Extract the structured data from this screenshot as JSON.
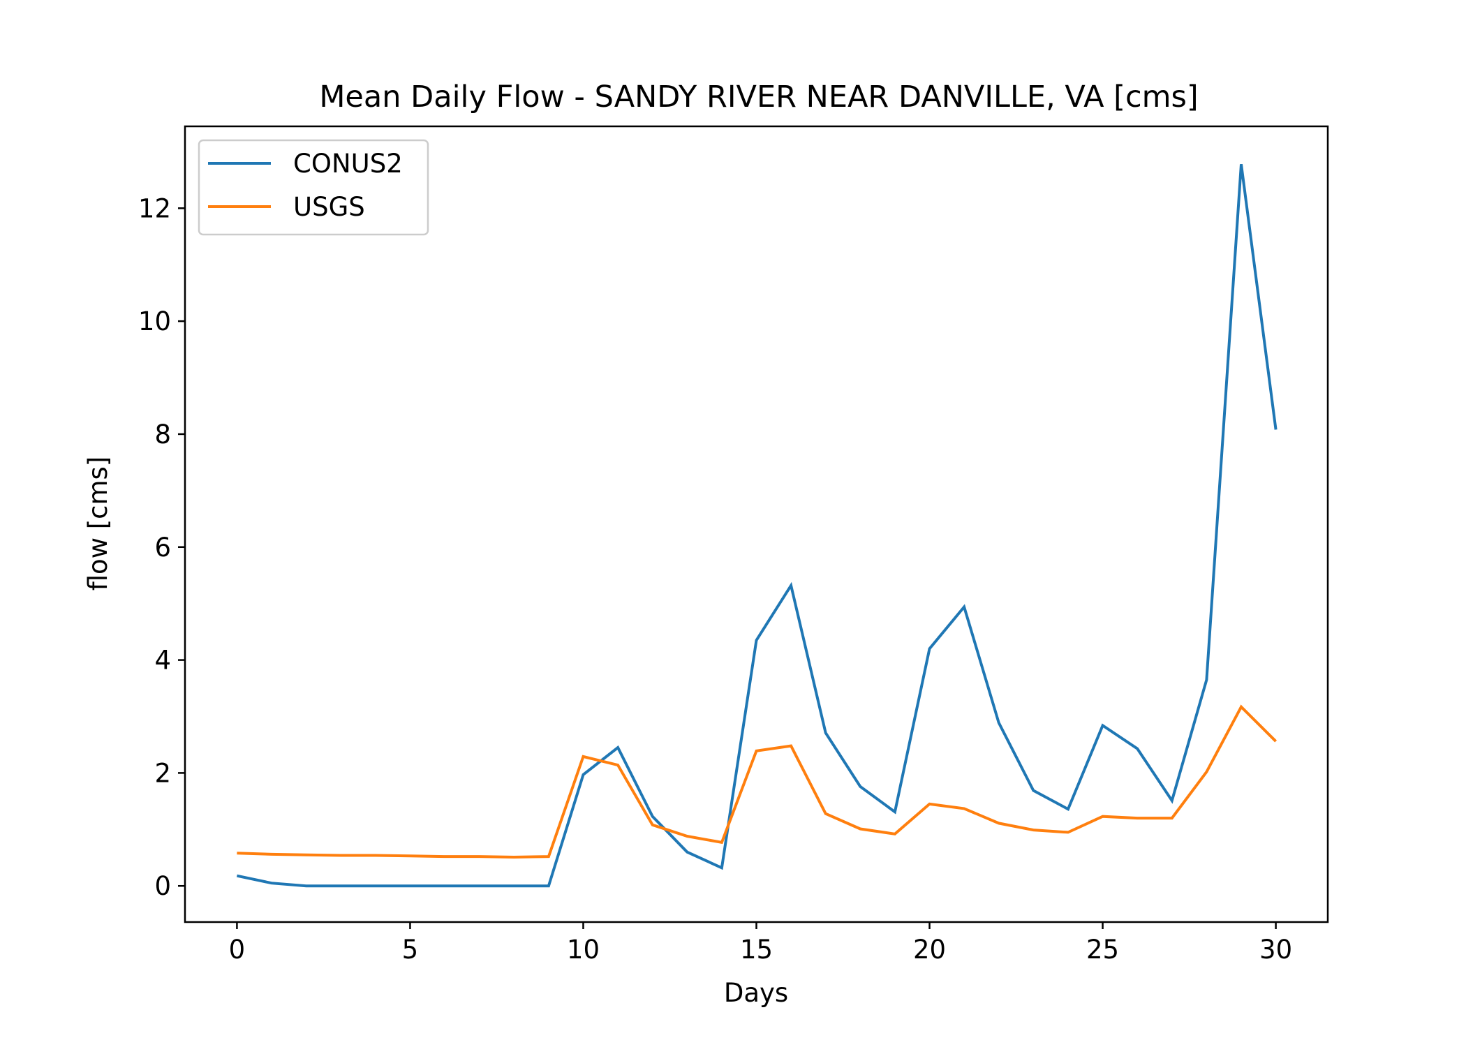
{
  "chart_data": {
    "type": "line",
    "title": "Mean Daily Flow - SANDY RIVER NEAR DANVILLE, VA [cms]",
    "xlabel": "Days",
    "ylabel": "flow [cms]",
    "xlim": [
      -1.5,
      31.5
    ],
    "ylim": [
      -0.64,
      13.45
    ],
    "xticks": [
      0,
      5,
      10,
      15,
      20,
      25,
      30
    ],
    "yticks": [
      0,
      2,
      4,
      6,
      8,
      10,
      12
    ],
    "grid": false,
    "legend_position": "top-left",
    "x": [
      0,
      1,
      2,
      3,
      4,
      5,
      6,
      7,
      8,
      9,
      10,
      11,
      12,
      13,
      14,
      15,
      16,
      17,
      18,
      19,
      20,
      21,
      22,
      23,
      24,
      25,
      26,
      27,
      28,
      29,
      30
    ],
    "series": [
      {
        "name": "CONUS2",
        "color": "#1f77b4",
        "values": [
          0.18,
          0.05,
          0.0,
          0.0,
          0.0,
          0.0,
          0.0,
          0.0,
          0.0,
          0.0,
          1.97,
          2.45,
          1.23,
          0.6,
          0.32,
          4.35,
          5.32,
          2.71,
          1.76,
          1.31,
          4.2,
          4.94,
          2.89,
          1.69,
          1.36,
          2.84,
          2.43,
          1.51,
          3.65,
          12.78,
          8.08
        ]
      },
      {
        "name": "USGS",
        "color": "#ff7f0e",
        "values": [
          0.58,
          0.56,
          0.55,
          0.54,
          0.54,
          0.53,
          0.52,
          0.52,
          0.51,
          0.52,
          2.29,
          2.14,
          1.08,
          0.88,
          0.77,
          2.39,
          2.48,
          1.28,
          1.01,
          0.92,
          1.45,
          1.37,
          1.11,
          0.99,
          0.95,
          1.23,
          1.2,
          1.2,
          2.02,
          3.17,
          2.56
        ]
      }
    ]
  }
}
